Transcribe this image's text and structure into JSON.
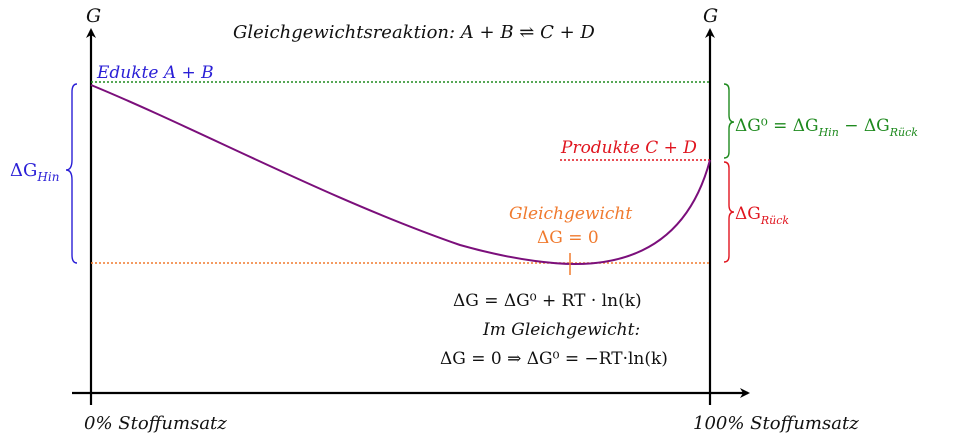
{
  "title": "Gleichgewichtsreaktion: A + B ⇌ C + D",
  "axis": {
    "y_left_label": "G",
    "y_right_label": "G",
    "x_left_label": "0% Stoffumsatz",
    "x_right_label": "100% Stoffumsatz"
  },
  "labels": {
    "edukte": "Edukte A + B",
    "produkte": "Produkte C + D",
    "gleichgewicht_line1": "Gleichgewicht",
    "gleichgewicht_line2": "ΔG = 0",
    "delta_g_hin": "ΔG",
    "delta_g_hin_sub": "Hin",
    "delta_g0_relation": "ΔG⁰ = ΔG",
    "delta_g0_relation_sub1": "Hin",
    "delta_g0_relation_mid": " − ΔG",
    "delta_g0_relation_sub2": "Rück",
    "delta_g_rueck": "ΔG",
    "delta_g_rueck_sub": "Rück"
  },
  "equations": {
    "line1": "ΔG = ΔG⁰ + RT · ln(k)",
    "line2": "Im Gleichgewicht:",
    "line3": "ΔG = 0 ⇒ ΔG⁰ = −RT·ln(k)"
  },
  "colors": {
    "axis": "#000000",
    "curve": "#7b0f7b",
    "edukte": "#2a1fd6",
    "produkte": "#e0151f",
    "gleichgewicht": "#f07a2e",
    "green": "#1f8a1f",
    "text": "#111111"
  }
}
